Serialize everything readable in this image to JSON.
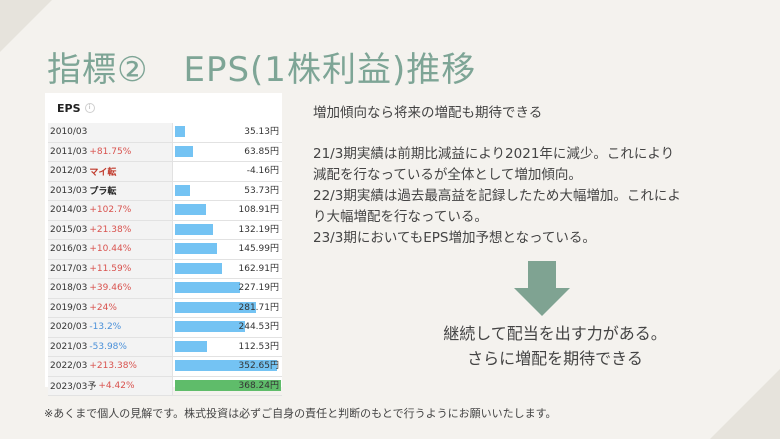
{
  "title": "指標②　EPS(1株利益)推移",
  "panel_title": "EPS",
  "chart_data": {
    "type": "table",
    "title": "EPS",
    "rows": [
      {
        "year": "2010/03",
        "change": "",
        "change_type": "none",
        "value": 35.13,
        "value_label": "35.13円"
      },
      {
        "year": "2011/03",
        "change": "+81.75%",
        "change_type": "up",
        "value": 63.85,
        "value_label": "63.85円"
      },
      {
        "year": "2012/03",
        "change": "マイ転",
        "change_type": "tag",
        "value": -4.16,
        "value_label": "-4.16円"
      },
      {
        "year": "2013/03",
        "change": "プラ転",
        "change_type": "tag-dark",
        "value": 53.73,
        "value_label": "53.73円"
      },
      {
        "year": "2014/03",
        "change": "+102.7%",
        "change_type": "up",
        "value": 108.91,
        "value_label": "108.91円"
      },
      {
        "year": "2015/03",
        "change": "+21.38%",
        "change_type": "up",
        "value": 132.19,
        "value_label": "132.19円"
      },
      {
        "year": "2016/03",
        "change": "+10.44%",
        "change_type": "up",
        "value": 145.99,
        "value_label": "145.99円"
      },
      {
        "year": "2017/03",
        "change": "+11.59%",
        "change_type": "up",
        "value": 162.91,
        "value_label": "162.91円"
      },
      {
        "year": "2018/03",
        "change": "+39.46%",
        "change_type": "up",
        "value": 227.19,
        "value_label": "227.19円"
      },
      {
        "year": "2019/03",
        "change": "+24%",
        "change_type": "up",
        "value": 281.71,
        "value_label": "281.71円"
      },
      {
        "year": "2020/03",
        "change": "-13.2%",
        "change_type": "down",
        "value": 244.53,
        "value_label": "244.53円"
      },
      {
        "year": "2021/03",
        "change": "-53.98%",
        "change_type": "down",
        "value": 112.53,
        "value_label": "112.53円"
      },
      {
        "year": "2022/03",
        "change": "+213.38%",
        "change_type": "up",
        "value": 352.65,
        "value_label": "352.65円"
      },
      {
        "year": "2023/03予",
        "change": "+4.42%",
        "change_type": "up",
        "value": 368.24,
        "value_label": "368.24円",
        "forecast": true
      }
    ],
    "max_value": 368.24,
    "colors": {
      "bar": "#74c3f3",
      "forecast_bar": "#5fbc6a",
      "up": "#d9534f",
      "down": "#4a90d9"
    }
  },
  "subtitle": "増加傾向なら将来の増配も期待できる",
  "body_lines": [
    "21/3期実績は前期比減益により2021年に減少。これにより",
    "減配を行なっているが全体として増加傾向。",
    "22/3期実績は過去最高益を記録したため大幅増加。これによ",
    "り大幅増配を行なっている。",
    "23/3期においてもEPS増加予想となっている。"
  ],
  "conclusion_lines": [
    "継続して配当を出す力がある。",
    "さらに増配を期待できる"
  ],
  "disclaimer": "※あくまで個人の見解です。株式投資は必ずご自身の責任と判断のもとで行うようにお願いいたします。",
  "colors": {
    "accent": "#7ea596",
    "arrow": "#7fa392",
    "background": "#f4f2ee"
  }
}
